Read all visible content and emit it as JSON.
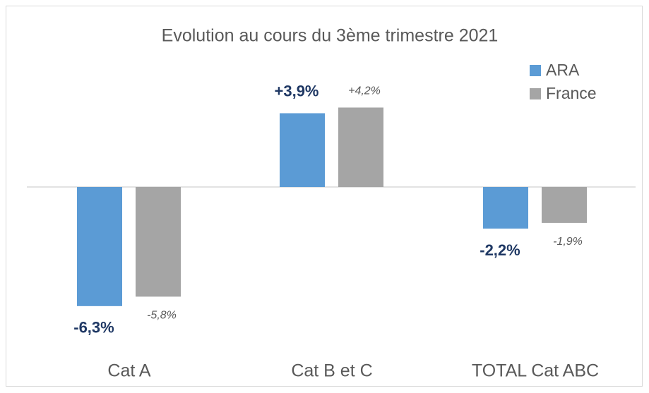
{
  "chart_data": {
    "type": "bar",
    "title": "Evolution au cours du 3ème trimestre 2021",
    "categories": [
      "Cat A",
      "Cat B et C",
      "TOTAL Cat ABC"
    ],
    "series": [
      {
        "name": "ARA",
        "color": "#5b9bd5",
        "values": [
          -6.3,
          3.9,
          -2.2
        ],
        "value_labels": [
          "-6,3%",
          "+3,9%",
          "-2,2%"
        ]
      },
      {
        "name": "France",
        "color": "#a5a5a5",
        "values": [
          -5.8,
          4.2,
          -1.9
        ],
        "value_labels": [
          "-5,8%",
          "+4,2%",
          "-1,9%"
        ]
      }
    ],
    "legend": "top-right"
  }
}
